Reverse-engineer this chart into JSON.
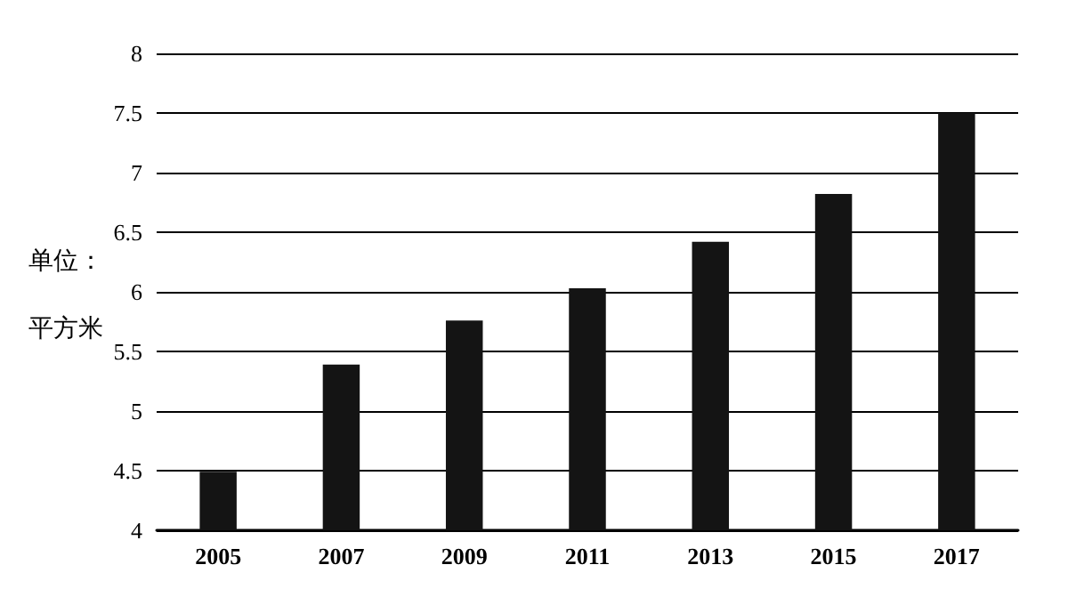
{
  "chart_data": {
    "type": "bar",
    "ylabel": "单位：平方米",
    "categories": [
      "2005",
      "2007",
      "2009",
      "2011",
      "2013",
      "2015",
      "2017"
    ],
    "values": [
      4.49,
      5.39,
      5.76,
      6.03,
      6.42,
      6.82,
      7.5
    ],
    "color": "#141414",
    "ylim": [
      4,
      8
    ],
    "yticks": [
      4,
      4.5,
      5,
      5.5,
      6,
      6.5,
      7,
      7.5,
      8
    ],
    "grid": "y"
  }
}
